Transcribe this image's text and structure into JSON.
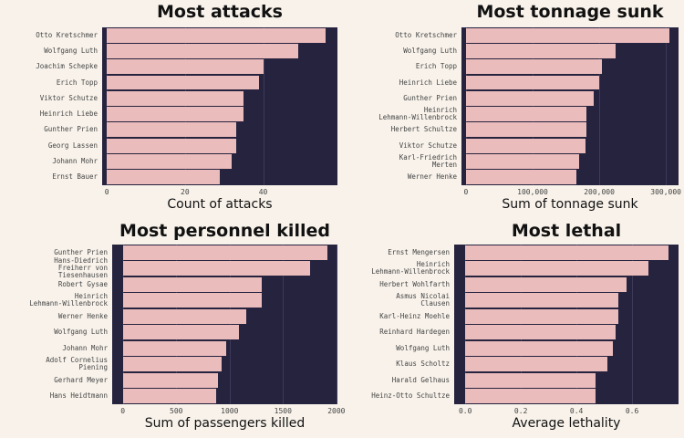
{
  "chart_data": [
    {
      "type": "barh",
      "title": "Most attacks",
      "xlabel": "Count of attacks",
      "color": "#ebbcbc",
      "categories": [
        "Otto Kretschmer",
        "Wolfgang Luth",
        "Joachim Schepke",
        "Erich Topp",
        "Viktor Schutze",
        "Heinrich Liebe",
        "Gunther Prien",
        "Georg Lassen",
        "Johann Mohr",
        "Ernst Bauer"
      ],
      "values": [
        56,
        49,
        40,
        39,
        35,
        35,
        33,
        33,
        32,
        29
      ],
      "xlim": [
        -1.2,
        59
      ],
      "xticks": [
        0,
        20,
        40
      ],
      "grid": true
    },
    {
      "type": "barh",
      "title": "Most tonnage sunk",
      "xlabel": "Sum of tonnage sunk",
      "color": "#ebbcbc",
      "categories": [
        "Otto Kretschmer",
        "Wolfgang Luth",
        "Erich Topp",
        "Heinrich Liebe",
        "Gunther Prien",
        "Heinrich\nLehmann-Willenbrock",
        "Herbert Schultze",
        "Viktor Schutze",
        "Karl-Friedrich\nMerten",
        "Werner Henke"
      ],
      "values": [
        305000,
        225000,
        204000,
        200000,
        192000,
        181000,
        181000,
        179000,
        170000,
        166000
      ],
      "xlim": [
        -6800,
        319000
      ],
      "xticks": [
        0,
        {
          "value": 100000,
          "label": "100,000"
        },
        {
          "value": 200000,
          "label": "200,000"
        },
        {
          "value": 300000,
          "label": "300,000"
        }
      ],
      "grid": true
    },
    {
      "type": "barh",
      "title": "Most personnel killed",
      "xlabel": "Sum of passengers killed",
      "color": "#ebbcbc",
      "categories": [
        "Gunther Prien",
        "Hans-Diedrich\nFreiherr von\nTiesenhausen",
        "Robert Gysae",
        "Heinrich\nLehmann-Willenbrock",
        "Werner Henke",
        "Wolfgang Luth",
        "Johann Mohr",
        "Adolf Cornelius\nPiening",
        "Gerhard Meyer",
        "Hans Heidtmann"
      ],
      "values": [
        1915,
        1750,
        1300,
        1300,
        1155,
        1085,
        965,
        925,
        890,
        870
      ],
      "xlim": [
        -100,
        2010
      ],
      "xticks": [
        0,
        500,
        1000,
        1500,
        2000
      ],
      "grid": true
    },
    {
      "type": "barh",
      "title": "Most lethal",
      "xlabel": "Average lethality",
      "color": "#ebbcbc",
      "categories": [
        "Ernst Mengersen",
        "Heinrich\nLehmann-Willenbrock",
        "Herbert Wohlfarth",
        "Asmus Nicolai\nClausen",
        "Karl-Heinz Moehle",
        "Reinhard Hardegen",
        "Wolfgang Luth",
        "Klaus Scholtz",
        "Harald Gelhaus",
        "Heinz-Otto Schultze"
      ],
      "values": [
        0.73,
        0.66,
        0.58,
        0.55,
        0.55,
        0.54,
        0.53,
        0.51,
        0.47,
        0.47
      ],
      "xlim": [
        -0.04,
        0.767
      ],
      "xticks": [
        {
          "value": 0,
          "label": "0.0"
        },
        0.2,
        0.4,
        0.6
      ],
      "grid": true
    }
  ]
}
